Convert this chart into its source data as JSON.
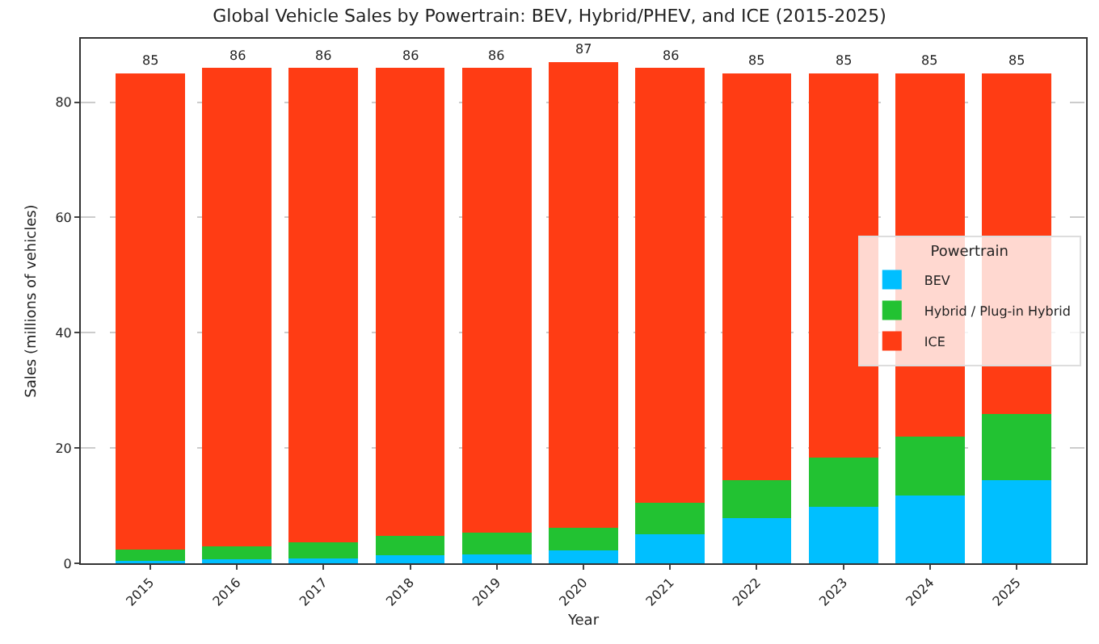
{
  "chart_data": {
    "type": "bar",
    "stacked": true,
    "title": "Global Vehicle Sales by Powertrain: BEV, Hybrid/PHEV, and ICE (2015-2025)",
    "xlabel": "Year",
    "ylabel": "Sales (millions of vehicles)",
    "legend_title": "Powertrain",
    "categories": [
      "2015",
      "2016",
      "2017",
      "2018",
      "2019",
      "2020",
      "2021",
      "2022",
      "2023",
      "2024",
      "2025"
    ],
    "series": [
      {
        "name": "BEV",
        "color": "#00bfff",
        "values": [
          0.4,
          0.7,
          0.9,
          1.4,
          1.6,
          2.3,
          5.1,
          7.9,
          9.8,
          11.8,
          14.4
        ]
      },
      {
        "name": "Hybrid / Plug-in Hybrid",
        "color": "#22c232",
        "values": [
          2.0,
          2.3,
          2.7,
          3.3,
          3.7,
          3.8,
          5.4,
          6.5,
          8.6,
          10.2,
          11.5
        ]
      },
      {
        "name": "ICE",
        "color": "#ff3c14",
        "values": [
          82.6,
          83.0,
          82.4,
          81.3,
          80.7,
          80.9,
          75.5,
          70.6,
          66.6,
          63.0,
          59.1
        ]
      }
    ],
    "totals": [
      "85",
      "86",
      "86",
      "86",
      "86",
      "87",
      "86",
      "85",
      "85",
      "85",
      "85"
    ],
    "ylim": [
      0,
      91
    ],
    "yticks": [
      0,
      20,
      40,
      60,
      80
    ],
    "grid": "y",
    "legend": "right"
  }
}
